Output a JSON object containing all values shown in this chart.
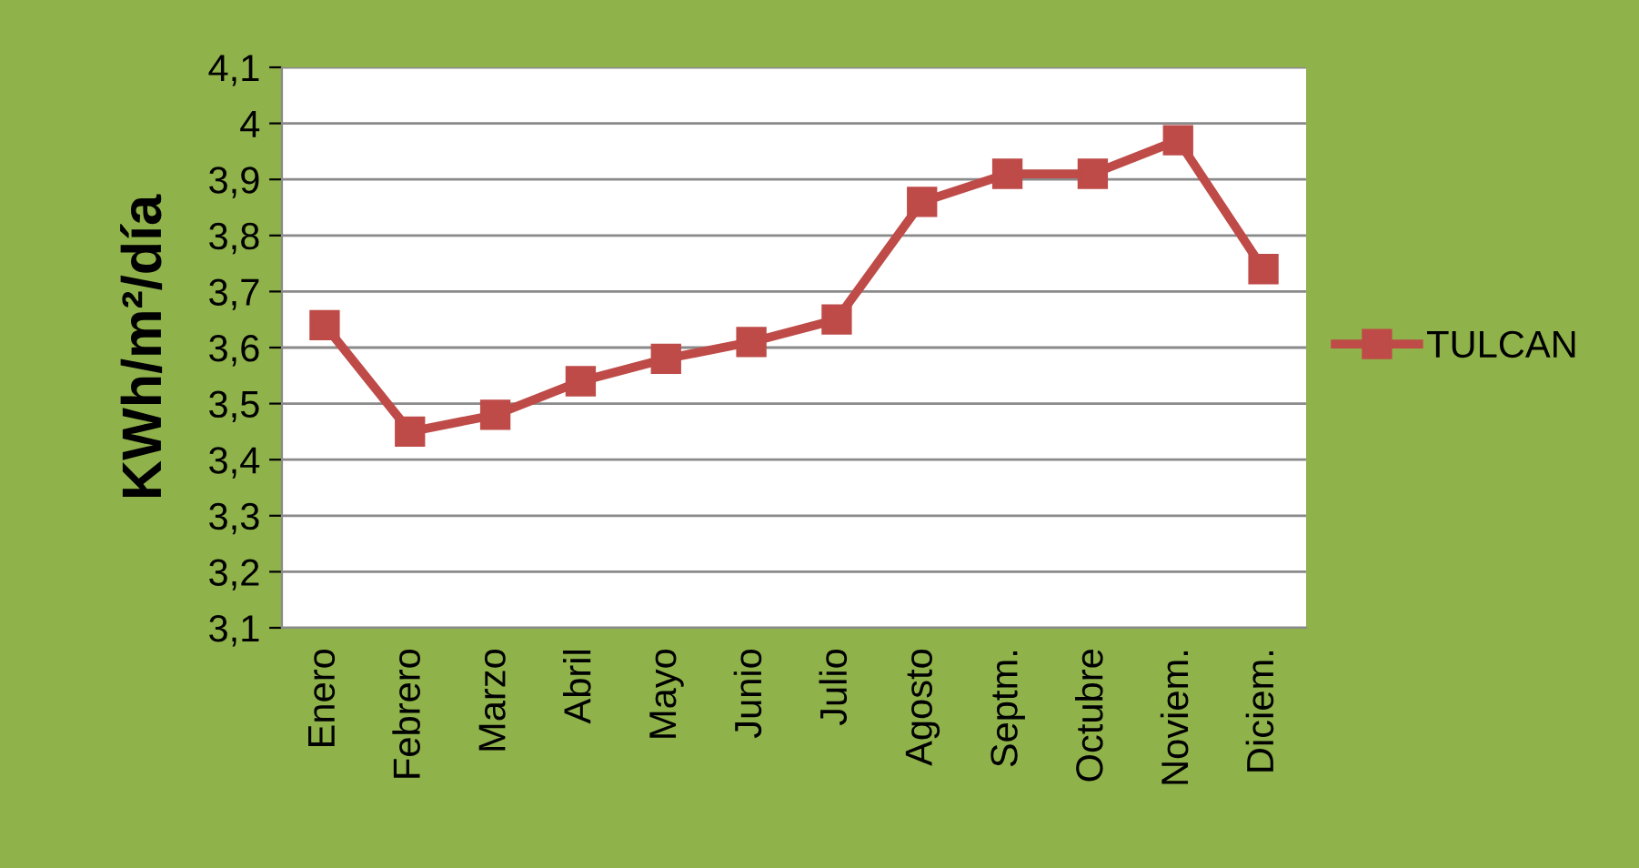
{
  "chart_data": {
    "type": "line",
    "ylabel": "KWh/m²/día",
    "categories": [
      "Enero",
      "Febrero",
      "Marzo",
      "Abril",
      "Mayo",
      "Junio",
      "Julio",
      "Agosto",
      "Septm.",
      "Octubre",
      "Noviem.",
      "Diciem."
    ],
    "series": [
      {
        "name": "TULCAN",
        "color": "#be4b48",
        "values": [
          3.64,
          3.45,
          3.48,
          3.54,
          3.58,
          3.61,
          3.65,
          3.86,
          3.91,
          3.91,
          3.97,
          3.74
        ]
      }
    ],
    "ylim": [
      3.1,
      4.1
    ],
    "yticks": [
      {
        "value": 3.1,
        "label": "3,1"
      },
      {
        "value": 3.2,
        "label": "3,2"
      },
      {
        "value": 3.3,
        "label": "3,3"
      },
      {
        "value": 3.4,
        "label": "3,4"
      },
      {
        "value": 3.5,
        "label": "3,5"
      },
      {
        "value": 3.6,
        "label": "3,6"
      },
      {
        "value": 3.7,
        "label": "3,7"
      },
      {
        "value": 3.8,
        "label": "3,8"
      },
      {
        "value": 3.9,
        "label": "3,9"
      },
      {
        "value": 4.0,
        "label": "4"
      },
      {
        "value": 4.1,
        "label": "4,1"
      }
    ],
    "grid": "y",
    "legend": "right",
    "marker": "square",
    "line_style": "solid"
  }
}
